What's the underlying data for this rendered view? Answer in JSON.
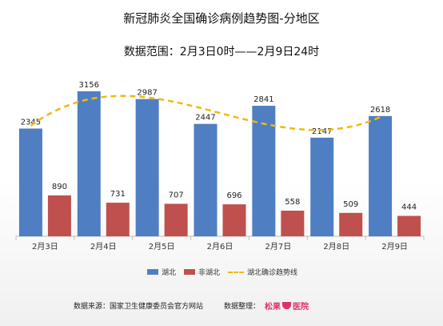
{
  "title": "新冠肺炎全国确诊病例趋势图-分地区",
  "subtitle": "数据范围：2月3日0时——2月9日24时",
  "chart_data": {
    "type": "bar",
    "categories": [
      "2月3日",
      "2月4日",
      "2月5日",
      "2月6日",
      "2月7日",
      "2月8日",
      "2月9日"
    ],
    "series": [
      {
        "name": "湖北",
        "values": [
          2345,
          3156,
          2987,
          2447,
          2841,
          2147,
          2618
        ],
        "color": "#4f7fc2"
      },
      {
        "name": "非湖北",
        "values": [
          890,
          731,
          707,
          696,
          558,
          509,
          444
        ],
        "color": "#c0504d"
      }
    ],
    "trendline": {
      "name": "湖北确诊趋势线",
      "color": "#f2b90c",
      "style": "dashed"
    },
    "ylim": [
      0,
      3400
    ],
    "legend_position": "bottom",
    "grid": false
  },
  "legend": {
    "hubei": "湖北",
    "non_hubei": "非湖北",
    "trend": "湖北确诊趋势线"
  },
  "footer": {
    "source_label": "数据来源：国家卫生健康委员会官方网站",
    "compiler_label": "数据整理：",
    "logo_text": "松果",
    "logo_text2": "医院"
  }
}
